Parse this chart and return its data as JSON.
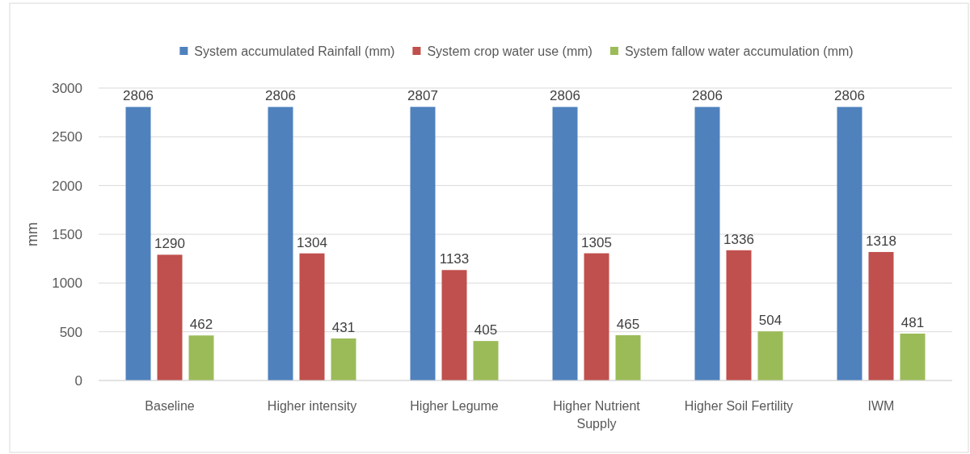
{
  "chart_data": {
    "type": "bar",
    "ylabel": "mm",
    "categories": [
      "Baseline",
      "Higher intensity",
      "Higher Legume",
      "Higher Nutrient Supply",
      "Higher Soil Fertility",
      "IWM"
    ],
    "series": [
      {
        "name": "System accumulated Rainfall (mm)",
        "color": "#4f81bd",
        "values": [
          2806,
          2806,
          2807,
          2806,
          2806,
          2806
        ]
      },
      {
        "name": "System crop water use (mm)",
        "color": "#c0504d",
        "values": [
          1290,
          1304,
          1133,
          1305,
          1336,
          1318
        ]
      },
      {
        "name": "System fallow water accumulation (mm)",
        "color": "#9bbb59",
        "values": [
          462,
          431,
          405,
          465,
          504,
          481
        ]
      }
    ],
    "ylim": [
      0,
      3000
    ],
    "yticks": [
      0,
      500,
      1000,
      1500,
      2000,
      2500,
      3000
    ],
    "grid": "y",
    "legend": "top",
    "data_labels": true
  }
}
